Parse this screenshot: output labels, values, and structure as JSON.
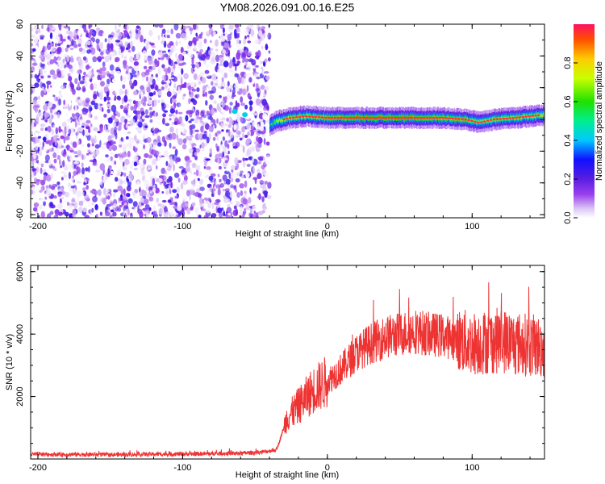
{
  "title": "YM08.2026.091.00.16.E25",
  "chart_data": [
    {
      "type": "heatmap",
      "xlabel": "Height of straight line (km)",
      "ylabel": "Frequency (Hz)",
      "xlim": [
        -205,
        150
      ],
      "ylim": [
        -62,
        60
      ],
      "x_ticks": [
        -200,
        -100,
        0,
        100
      ],
      "y_ticks": [
        -60,
        -40,
        -20,
        0,
        20,
        40,
        60
      ],
      "colorbar": {
        "label": "Normalized spectral amplitude",
        "range": [
          0,
          1
        ],
        "ticks": [
          0.0,
          0.2,
          0.4,
          0.6,
          0.8
        ],
        "tick_labels": [
          "0.0",
          "0.2",
          "0.4",
          "0.6",
          "0.8"
        ]
      },
      "noise_region_x": [
        -205,
        -40
      ],
      "signal_ridge": {
        "x": [
          -40,
          -35,
          -25,
          -15,
          0,
          20,
          50,
          80,
          95,
          105,
          115,
          130,
          150
        ],
        "frequency": [
          -4,
          -1,
          1,
          2,
          1,
          1,
          1,
          1,
          0,
          -2,
          0,
          1,
          3
        ],
        "amplitude": [
          0.5,
          0.7,
          0.8,
          0.8,
          0.85,
          0.9,
          0.9,
          0.85,
          0.85,
          0.7,
          0.8,
          0.8,
          0.75
        ]
      }
    },
    {
      "type": "line",
      "xlabel": "Height of straight line (km)",
      "ylabel": "SNR (10 * v/v)",
      "xlim": [
        -205,
        150
      ],
      "ylim": [
        0,
        6200
      ],
      "x_ticks": [
        -200,
        -100,
        0,
        100
      ],
      "y_ticks": [
        2000,
        4000,
        6000
      ],
      "series": [
        {
          "color": "#ee3333",
          "envelope": {
            "x": [
              -205,
              -150,
              -100,
              -60,
              -45,
              -35,
              -28,
              -20,
              -10,
              0,
              10,
              20,
              30,
              40,
              50,
              60,
              70,
              80,
              90,
              100,
              110,
              120,
              130,
              140,
              150
            ],
            "mean": [
              150,
              140,
              160,
              180,
              220,
              300,
              1300,
              1700,
              2200,
              2500,
              2900,
              3400,
              3700,
              3900,
              4000,
              4100,
              4000,
              3950,
              3800,
              3700,
              3750,
              3800,
              3700,
              3650,
              3550
            ]
          }
        }
      ]
    }
  ]
}
